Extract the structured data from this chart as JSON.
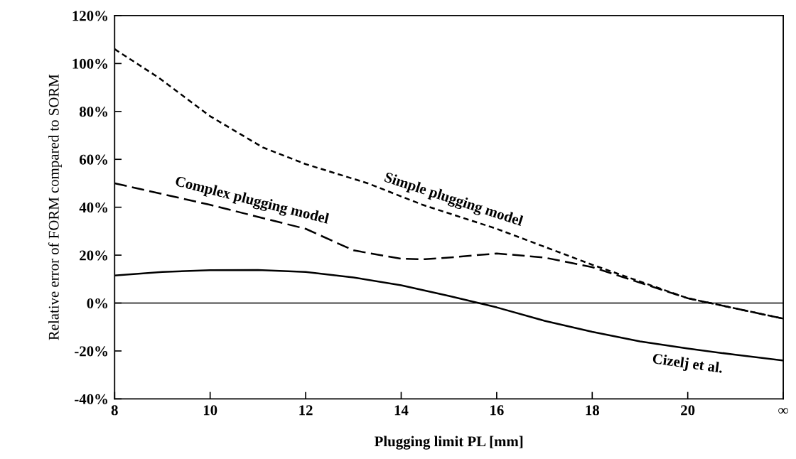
{
  "chart_data": {
    "type": "line",
    "xlabel": "Plugging limit PL [mm]",
    "ylabel": "Relative error of FORM compared to SORM",
    "xlim": [
      8,
      22
    ],
    "xticks": [
      8,
      10,
      12,
      14,
      16,
      18,
      20,
      {
        "value": 22,
        "label": "∞"
      }
    ],
    "ylim": [
      -40,
      120
    ],
    "yticks": [
      {
        "value": -40,
        "label": "-40%"
      },
      {
        "value": -20,
        "label": "-20%"
      },
      {
        "value": 0,
        "label": "0%"
      },
      {
        "value": 20,
        "label": "20%"
      },
      {
        "value": 40,
        "label": "40%"
      },
      {
        "value": 60,
        "label": "60%"
      },
      {
        "value": 80,
        "label": "80%"
      },
      {
        "value": 100,
        "label": "100%"
      },
      {
        "value": 120,
        "label": "120%"
      }
    ],
    "grid": false,
    "legend": false,
    "marker": "none",
    "ref_lines": [
      {
        "axis": "y",
        "value": 0,
        "label": null,
        "color": "#000000",
        "line_style": "solid"
      }
    ],
    "series": [
      {
        "name": "Simple plugging model",
        "color": "#000000",
        "line_style": "dotted",
        "x": [
          8,
          8.93,
          10,
          11.1,
          12,
          13.3,
          14.45,
          16,
          18,
          20,
          22
        ],
        "values": [
          106,
          94,
          78,
          65,
          58,
          50,
          41,
          31,
          16,
          2,
          -6.5
        ]
      },
      {
        "name": "Complex plugging model",
        "color": "#000000",
        "line_style": "dashed",
        "x": [
          8,
          10,
          12,
          13,
          14,
          14.5,
          15,
          16,
          17,
          18,
          20,
          22
        ],
        "values": [
          50,
          41,
          31,
          22,
          18.5,
          18.3,
          19,
          20.7,
          19,
          15,
          2,
          -6.5
        ]
      },
      {
        "name": "Cizelj et al.",
        "color": "#000000",
        "line_style": "solid",
        "x": [
          8,
          9,
          10,
          11,
          12,
          13,
          14,
          15,
          16,
          17,
          18,
          19,
          20,
          21,
          22
        ],
        "values": [
          11.5,
          13,
          13.7,
          13.8,
          13,
          10.7,
          7.4,
          3,
          -1.8,
          -7.4,
          -12,
          -16,
          -19,
          -21.6,
          -24
        ]
      }
    ]
  }
}
